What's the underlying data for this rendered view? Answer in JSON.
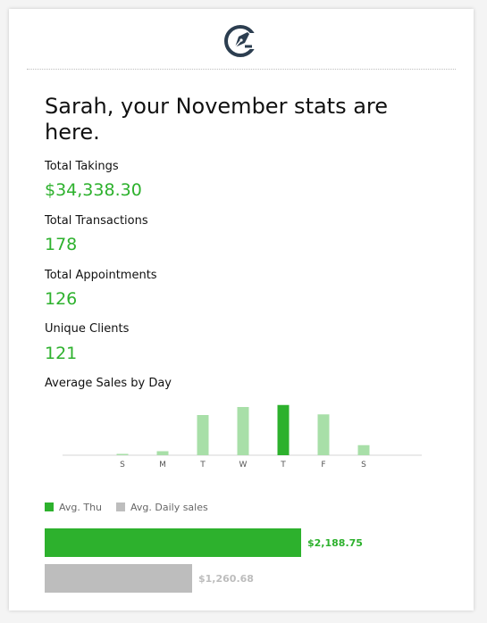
{
  "headline": "Sarah, your November stats are here.",
  "stats": [
    {
      "label": "Total Takings",
      "value": "$34,338.30"
    },
    {
      "label": "Total Transactions",
      "value": "178"
    },
    {
      "label": "Total Appointments",
      "value": "126"
    },
    {
      "label": "Unique Clients",
      "value": "121"
    }
  ],
  "colors": {
    "accent": "#2db12d",
    "accent_light": "#a8dfa8",
    "gray": "#bdbdbd",
    "label_gray": "#555555"
  },
  "chart_data": [
    {
      "type": "bar",
      "title": "Average Sales by Day",
      "categories": [
        "S",
        "M",
        "T",
        "W",
        "T",
        "F",
        "S"
      ],
      "values": [
        2,
        6,
        60,
        72,
        75,
        61,
        15
      ],
      "highlight_index": 4,
      "ylim": [
        0,
        80
      ],
      "grid": false
    },
    {
      "type": "bar",
      "orientation": "horizontal",
      "series": [
        {
          "name": "Avg. Thu",
          "value": 2188.75,
          "label": "$2,188.75",
          "color": "#2db12d"
        },
        {
          "name": "Avg. Daily sales",
          "value": 1260.68,
          "label": "$1,260.68",
          "color": "#bdbdbd"
        }
      ],
      "legend": "top-left"
    }
  ]
}
